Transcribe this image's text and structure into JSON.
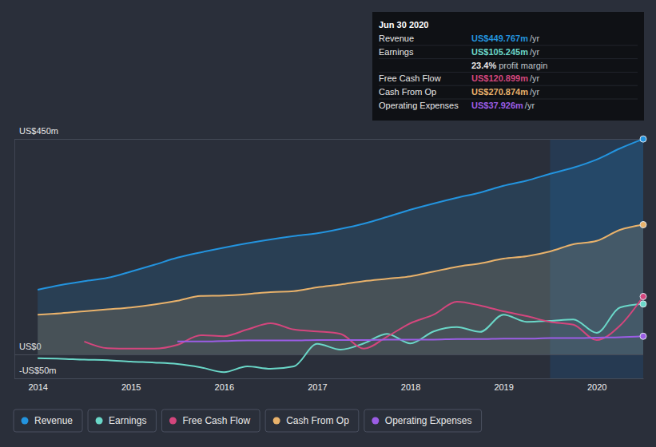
{
  "chart_data": {
    "type": "line",
    "x": [
      2014,
      2014.25,
      2014.5,
      2014.75,
      2015,
      2015.25,
      2015.5,
      2015.75,
      2016,
      2016.25,
      2016.5,
      2016.75,
      2017,
      2017.25,
      2017.5,
      2017.75,
      2018,
      2018.25,
      2018.5,
      2018.75,
      2019,
      2019.25,
      2019.5,
      2019.75,
      2020,
      2020.25,
      2020.5
    ],
    "xlim": [
      2013.75,
      2020.5
    ],
    "xticks": [
      2014,
      2015,
      2016,
      2017,
      2018,
      2019,
      2020
    ],
    "ylim": [
      -50,
      450
    ],
    "yticks": [
      {
        "value": 450,
        "label": "US$450m"
      },
      {
        "value": 0,
        "label": "US$0"
      },
      {
        "value": -50,
        "label": "-US$50m"
      }
    ],
    "grid": true,
    "legend": "bottom",
    "shaded_x": [
      2019.5,
      2020.5
    ],
    "series": [
      {
        "name": "Revenue",
        "color": "#2394df",
        "type": "area",
        "values": [
          135,
          145,
          153,
          160,
          173,
          187,
          202,
          213,
          223,
          232,
          240,
          247,
          253,
          262,
          273,
          287,
          302,
          315,
          327,
          338,
          352,
          363,
          377,
          390,
          407,
          430,
          449.767
        ]
      },
      {
        "name": "Earnings",
        "color": "#6ad7c8",
        "type": "line",
        "values": [
          -8,
          -9,
          -11,
          -12,
          -15,
          -17,
          -20,
          -27,
          -37,
          -25,
          -30,
          -25,
          22,
          10,
          23,
          43,
          23,
          48,
          57,
          47,
          83,
          68,
          70,
          73,
          45,
          98,
          105.245
        ]
      },
      {
        "name": "Free Cash Flow",
        "color": "#d4467d",
        "type": "line",
        "values": [
          null,
          null,
          27,
          13,
          12,
          12,
          20,
          40,
          38,
          52,
          65,
          52,
          48,
          43,
          12,
          37,
          65,
          83,
          110,
          102,
          90,
          80,
          68,
          62,
          30,
          60,
          120.899
        ]
      },
      {
        "name": "Cash From Op",
        "color": "#e9b26b",
        "type": "area",
        "values": [
          83,
          86,
          90,
          94,
          98,
          104,
          112,
          122,
          123,
          126,
          130,
          132,
          140,
          146,
          153,
          158,
          163,
          173,
          183,
          190,
          200,
          205,
          215,
          230,
          237,
          260,
          270.874
        ]
      },
      {
        "name": "Operating Expenses",
        "color": "#9b5de5",
        "type": "line",
        "values": [
          null,
          null,
          null,
          null,
          null,
          null,
          27,
          27,
          28,
          29,
          29,
          29,
          30,
          30,
          30,
          31,
          31,
          31,
          32,
          32,
          33,
          33,
          34,
          34,
          35,
          36,
          37.926
        ]
      }
    ],
    "tooltip": {
      "date": "Jun 30 2020",
      "rows": [
        {
          "label": "Revenue",
          "value": "US$449.767m",
          "unit": "/yr"
        },
        {
          "label": "Earnings",
          "value": "US$105.245m",
          "unit": "/yr"
        },
        {
          "value": "23.4%",
          "text": "profit margin"
        },
        {
          "label": "Free Cash Flow",
          "value": "US$120.899m",
          "unit": "/yr"
        },
        {
          "label": "Cash From Op",
          "value": "US$270.874m",
          "unit": "/yr"
        },
        {
          "label": "Operating Expenses",
          "value": "US$37.926m",
          "unit": "/yr"
        }
      ]
    }
  }
}
